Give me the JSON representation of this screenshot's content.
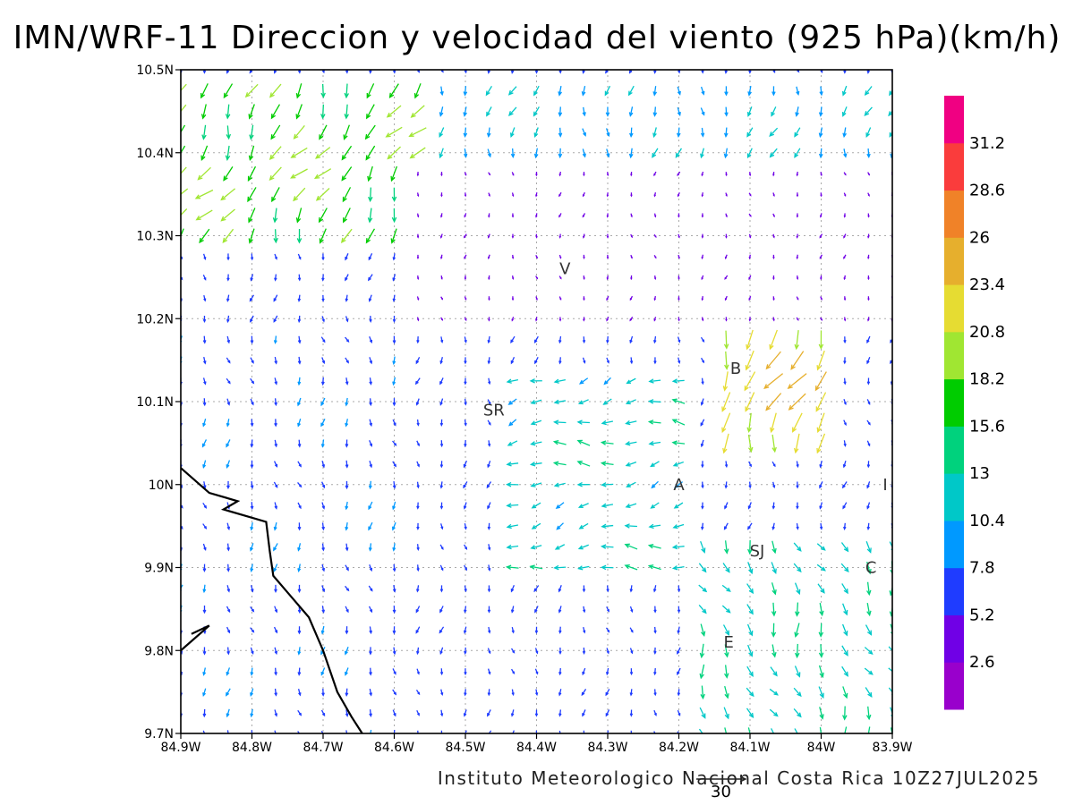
{
  "title": "IMN/WRF-11 Direccion y velocidad del viento (925 hPa)(km/h)",
  "credit": "Instituto Meteorologico Nacional Costa Rica 10Z27JUL2025",
  "reference_vector": {
    "label": "30",
    "speed_kmh": 30
  },
  "map": {
    "lon_range": [
      -84.9,
      -83.9
    ],
    "lat_range": [
      9.7,
      10.5
    ],
    "grid": true,
    "x_ticks": [
      {
        "lon": -84.9,
        "label": "84.9W"
      },
      {
        "lon": -84.8,
        "label": "84.8W"
      },
      {
        "lon": -84.7,
        "label": "84.7W"
      },
      {
        "lon": -84.6,
        "label": "84.6W"
      },
      {
        "lon": -84.5,
        "label": "84.5W"
      },
      {
        "lon": -84.4,
        "label": "84.4W"
      },
      {
        "lon": -84.3,
        "label": "84.3W"
      },
      {
        "lon": -84.2,
        "label": "84.2W"
      },
      {
        "lon": -84.1,
        "label": "84.1W"
      },
      {
        "lon": -84.0,
        "label": "84W"
      },
      {
        "lon": -83.9,
        "label": "83.9W"
      }
    ],
    "y_ticks": [
      {
        "lat": 9.7,
        "label": "9.7N"
      },
      {
        "lat": 9.8,
        "label": "9.8N"
      },
      {
        "lat": 9.9,
        "label": "9.9N"
      },
      {
        "lat": 10.0,
        "label": "10N"
      },
      {
        "lat": 10.1,
        "label": "10.1N"
      },
      {
        "lat": 10.2,
        "label": "10.2N"
      },
      {
        "lat": 10.3,
        "label": "10.3N"
      },
      {
        "lat": 10.4,
        "label": "10.4N"
      },
      {
        "lat": 10.5,
        "label": "10.5N"
      }
    ],
    "cities": [
      {
        "label": "V",
        "lon": -84.36,
        "lat": 10.26
      },
      {
        "label": "B",
        "lon": -84.12,
        "lat": 10.14
      },
      {
        "label": "SR",
        "lon": -84.46,
        "lat": 10.09
      },
      {
        "label": "A",
        "lon": -84.2,
        "lat": 10.0
      },
      {
        "label": "I",
        "lon": -83.91,
        "lat": 10.0
      },
      {
        "label": "SJ",
        "lon": -84.09,
        "lat": 9.92
      },
      {
        "label": "C",
        "lon": -83.93,
        "lat": 9.9
      },
      {
        "label": "E",
        "lon": -84.13,
        "lat": 9.81
      }
    ],
    "coastline": [
      [
        -84.9,
        10.02
      ],
      [
        -84.86,
        9.99
      ],
      [
        -84.82,
        9.98
      ],
      [
        -84.84,
        9.97
      ],
      [
        -84.8,
        9.96
      ],
      [
        -84.78,
        9.955
      ],
      [
        -84.775,
        9.92
      ],
      [
        -84.77,
        9.89
      ],
      [
        -84.75,
        9.87
      ],
      [
        -84.72,
        9.84
      ],
      [
        -84.7,
        9.8
      ],
      [
        -84.68,
        9.75
      ],
      [
        -84.66,
        9.72
      ],
      [
        -84.645,
        9.7
      ]
    ],
    "coastline_fragment": [
      [
        -84.9,
        9.8
      ],
      [
        -84.86,
        9.83
      ],
      [
        -84.885,
        9.82
      ]
    ]
  },
  "colorbar": {
    "colors": [
      "#9900cc",
      "#7000e6",
      "#1f3cff",
      "#0099ff",
      "#00c8c8",
      "#00d27d",
      "#00cc00",
      "#a0e632",
      "#e6dc32",
      "#e6af2d",
      "#f08228",
      "#fa3c3c",
      "#f00082"
    ],
    "labels": [
      "2.6",
      "5.2",
      "7.8",
      "10.4",
      "13",
      "15.6",
      "18.2",
      "20.8",
      "23.4",
      "26",
      "28.6",
      "31.2"
    ]
  },
  "wind_field": {
    "units": "km/h",
    "grid_lon": {
      "start": -84.9,
      "end": -83.9,
      "step": 0.03333
    },
    "grid_lat": {
      "start": 9.7,
      "end": 10.5,
      "step": 0.025
    },
    "regions": [
      {
        "lon": [
          -84.9,
          -84.55
        ],
        "lat": [
          10.3,
          10.5
        ],
        "speed": 19,
        "dir_to_deg": 210
      },
      {
        "lon": [
          -84.55,
          -83.9
        ],
        "lat": [
          10.38,
          10.5
        ],
        "speed": 11,
        "dir_to_deg": 190
      },
      {
        "lon": [
          -84.9,
          -84.6
        ],
        "lat": [
          9.7,
          10.2
        ],
        "speed": 8,
        "dir_to_deg": 175
      },
      {
        "lon": [
          -84.45,
          -84.2
        ],
        "lat": [
          9.9,
          10.15
        ],
        "speed": 13,
        "dir_to_deg": 260
      },
      {
        "lon": [
          -84.15,
          -84.0
        ],
        "lat": [
          10.03,
          10.2
        ],
        "speed": 24,
        "dir_to_deg": 200
      },
      {
        "lon": [
          -84.2,
          -83.9
        ],
        "lat": [
          9.7,
          9.95
        ],
        "speed": 14,
        "dir_to_deg": 160
      },
      {
        "lon": [
          -84.6,
          -83.9
        ],
        "lat": [
          10.2,
          10.38
        ],
        "speed": 4,
        "dir_to_deg": 180
      }
    ]
  }
}
